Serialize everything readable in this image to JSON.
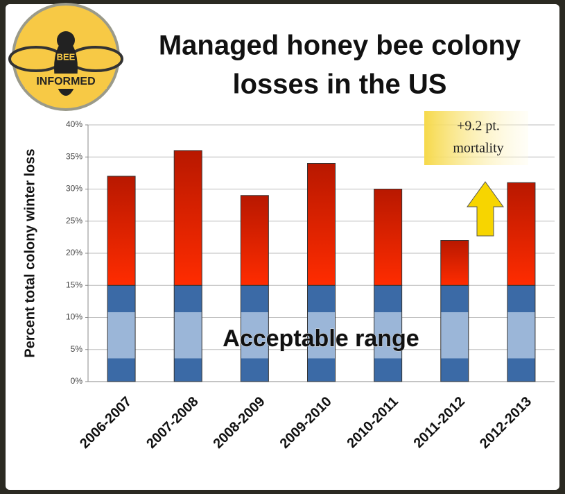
{
  "logo": {
    "line1": "BEE",
    "line2": "INFORMED"
  },
  "chart_data": {
    "type": "stacked-bar",
    "title_line1": "Managed honey bee colony",
    "title_line2": "losses in the US",
    "y_label": "Percent total colony winter loss",
    "categories": [
      "2006-2007",
      "2007-2008",
      "2008-2009",
      "2009-2010",
      "2010-2011",
      "2011-2012",
      "2012-2013"
    ],
    "series": [
      {
        "color": "#3b6aa6",
        "values": [
          15,
          15,
          15,
          15,
          15,
          15,
          15
        ]
      },
      {
        "color": "#e01e00",
        "values": [
          17,
          21,
          14,
          19,
          15,
          7,
          16
        ]
      }
    ],
    "ylim": [
      0,
      40
    ],
    "yticks": [
      {
        "value": 0,
        "label": "0%"
      },
      {
        "value": 5,
        "label": "5%"
      },
      {
        "value": 10,
        "label": "10%"
      },
      {
        "value": 15,
        "label": "15%"
      },
      {
        "value": 20,
        "label": "20%"
      },
      {
        "value": 25,
        "label": "25%"
      },
      {
        "value": 30,
        "label": "30%"
      },
      {
        "value": 35,
        "label": "35%"
      },
      {
        "value": 40,
        "label": "40%"
      }
    ],
    "grid": true,
    "band_label": "Acceptable range",
    "annotation_line1": "+9.2 pt.",
    "annotation_line2": "mortality"
  }
}
